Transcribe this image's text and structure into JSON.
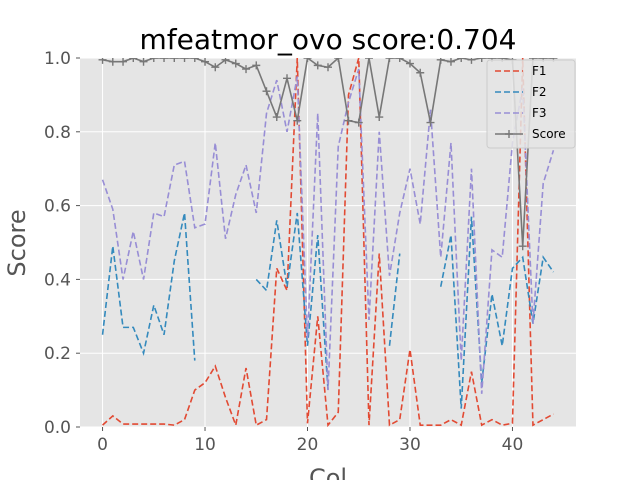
{
  "chart_data": {
    "type": "line",
    "title": "mfeatmor_ovo score:0.704",
    "xlabel": "Col",
    "ylabel": "Score",
    "xlim": [
      -2.2,
      46.2
    ],
    "ylim": [
      0,
      1.0
    ],
    "xticks": [
      0,
      10,
      20,
      30,
      40
    ],
    "yticks": [
      0.0,
      0.2,
      0.4,
      0.6,
      0.8,
      1.0
    ],
    "grid": true,
    "legend_position": "top-right",
    "x": [
      0,
      1,
      2,
      3,
      4,
      5,
      6,
      7,
      8,
      9,
      10,
      11,
      12,
      13,
      14,
      15,
      16,
      17,
      18,
      19,
      20,
      21,
      22,
      23,
      24,
      25,
      26,
      27,
      28,
      29,
      30,
      31,
      32,
      33,
      34,
      35,
      36,
      37,
      38,
      39,
      40,
      41,
      42,
      43,
      44
    ],
    "series": [
      {
        "name": "F1",
        "color": "#e24a33",
        "dash": "dashed",
        "values": [
          0.005,
          0.03,
          0.008,
          0.008,
          0.008,
          0.008,
          0.008,
          0.005,
          0.02,
          0.1,
          0.12,
          0.165,
          0.08,
          0.005,
          0.16,
          0.005,
          0.02,
          0.43,
          0.37,
          1.0,
          0.01,
          0.3,
          0.005,
          0.04,
          0.9,
          1.0,
          0.005,
          0.47,
          0.005,
          0.02,
          0.21,
          0.005,
          0.005,
          0.005,
          0.02,
          0.005,
          0.15,
          0.005,
          0.02,
          0.005,
          0.01,
          1.0,
          0.005,
          0.02,
          0.035
        ]
      },
      {
        "name": "F2",
        "color": "#348abd",
        "dash": "dashed",
        "values": [
          0.25,
          0.49,
          0.27,
          0.27,
          0.2,
          0.33,
          0.25,
          0.45,
          0.58,
          0.18,
          null,
          null,
          null,
          null,
          null,
          0.4,
          0.37,
          0.56,
          0.38,
          0.58,
          0.22,
          0.52,
          0.1,
          null,
          null,
          null,
          null,
          null,
          0.22,
          0.47,
          null,
          null,
          null,
          0.38,
          0.52,
          0.05,
          0.57,
          0.12,
          0.36,
          0.22,
          0.43,
          0.46,
          0.28,
          0.46,
          0.42
        ]
      },
      {
        "name": "F3",
        "color": "#988ed5",
        "dash": "dashed",
        "values": [
          0.67,
          0.59,
          0.4,
          0.53,
          0.4,
          0.58,
          0.57,
          0.71,
          0.72,
          0.54,
          0.55,
          0.77,
          0.51,
          0.63,
          0.71,
          0.58,
          0.85,
          0.94,
          0.8,
          0.95,
          0.24,
          0.85,
          0.1,
          0.76,
          0.88,
          0.97,
          0.29,
          0.8,
          0.41,
          0.58,
          0.7,
          0.55,
          0.86,
          0.46,
          0.77,
          0.18,
          0.7,
          0.09,
          0.48,
          0.46,
          0.77,
          0.92,
          0.28,
          0.66,
          0.75
        ]
      },
      {
        "name": "Score",
        "color": "#777777",
        "dash": "solid",
        "marker": "+",
        "values": [
          0.995,
          0.99,
          0.99,
          1.0,
          0.99,
          1.0,
          1.0,
          1.0,
          1.0,
          1.0,
          0.99,
          0.975,
          0.995,
          0.985,
          0.97,
          0.98,
          0.91,
          0.84,
          0.945,
          0.83,
          1.0,
          0.98,
          0.975,
          1.0,
          0.83,
          0.825,
          1.0,
          0.84,
          1.0,
          1.0,
          0.985,
          0.96,
          0.825,
          0.995,
          0.99,
          1.0,
          0.995,
          1.0,
          1.0,
          1.0,
          0.995,
          0.49,
          1.0,
          1.0,
          1.0
        ]
      }
    ]
  }
}
